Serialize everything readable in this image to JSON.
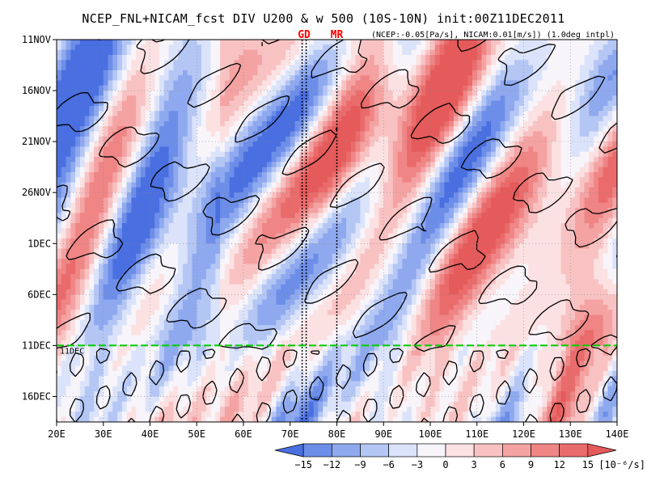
{
  "chart_data": {
    "type": "heatmap",
    "title": "NCEP_FNL+NICAM_fcst DIV U200 & w 500 (10S-10N) init:00Z11DEC2011",
    "subtitle": "(NCEP:-0.05[Pa/s], NICAM:0.01[m/s]) (1.0deg intpl)",
    "x_ticks": [
      "20E",
      "30E",
      "40E",
      "50E",
      "60E",
      "70E",
      "80E",
      "90E",
      "100E",
      "110E",
      "120E",
      "130E",
      "140E"
    ],
    "xlim": [
      20,
      140
    ],
    "y_ticks": [
      "11NOV",
      "16NOV",
      "21NOV",
      "26NOV",
      "1DEC",
      "6DEC",
      "11DEC",
      "16DEC"
    ],
    "ylim_days": [
      0,
      37.5
    ],
    "init_line": {
      "label": "11DEC",
      "color": "#00cc00"
    },
    "markers": [
      {
        "label": "GD",
        "lon": 73
      },
      {
        "label": "MR",
        "lon": 80
      }
    ],
    "colorbar": {
      "levels": [
        -15,
        -12,
        -9,
        -6,
        -3,
        0,
        3,
        6,
        9,
        12,
        15
      ],
      "labels": [
        "-15",
        "-12",
        "-9",
        "-6",
        "-3",
        "0",
        "3",
        "6",
        "9",
        "12",
        "15"
      ],
      "colors": [
        "#4a6fe0",
        "#6d8ee8",
        "#8fa9ef",
        "#b4c6f4",
        "#dbe3fa",
        "#f7f4fa",
        "#fbe1e2",
        "#f8c2c3",
        "#f4a2a2",
        "#ef8585",
        "#ea6b6b",
        "#e55a5a"
      ],
      "unit": "[10⁻⁶/s]"
    },
    "contour_color": "#000000"
  }
}
